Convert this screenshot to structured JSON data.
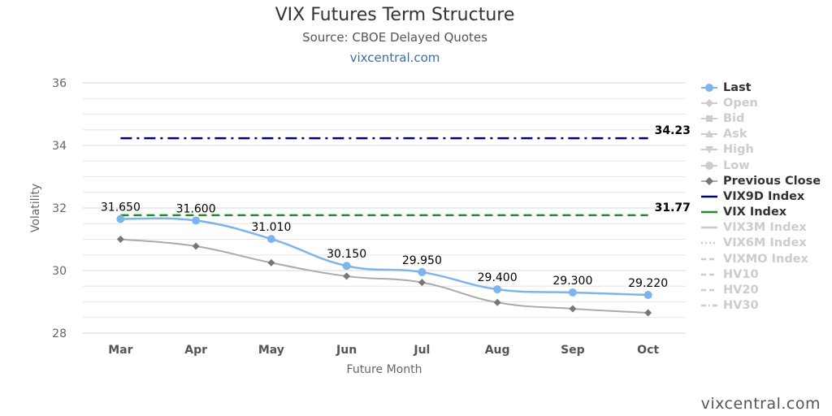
{
  "header": {
    "title": "VIX Futures Term Structure",
    "subtitle": "Source: CBOE Delayed Quotes",
    "link": "vixcentral.com"
  },
  "footer": {
    "credit": "vixcentral.com"
  },
  "colors": {
    "last": "#7cb5ec",
    "previous_close": "#aaaaaa",
    "vix9d": "#000080",
    "vix": "#228b22",
    "inactive": "#cccccc",
    "grid": "#e6e6e6"
  },
  "chart_data": {
    "type": "line",
    "title": "VIX Futures Term Structure",
    "subtitle": "Source: CBOE Delayed Quotes",
    "xlabel": "Future Month",
    "ylabel": "Volatility",
    "categories": [
      "Mar",
      "Apr",
      "May",
      "Jun",
      "Jul",
      "Aug",
      "Sep",
      "Oct"
    ],
    "ylim": [
      28,
      36
    ],
    "yticks": [
      "28",
      "30",
      "32",
      "34",
      "36"
    ],
    "grid": true,
    "legend_position": "right",
    "series": [
      {
        "name": "Last",
        "values": [
          31.65,
          31.6,
          31.01,
          30.15,
          29.95,
          29.4,
          29.3,
          29.22
        ],
        "labels": [
          "31.650",
          "31.600",
          "31.010",
          "30.150",
          "29.950",
          "29.400",
          "29.300",
          "29.220"
        ]
      },
      {
        "name": "Previous Close",
        "values": [
          31.0,
          30.78,
          30.25,
          29.82,
          29.62,
          28.98,
          28.78,
          28.65
        ]
      },
      {
        "name": "VIX9D Index",
        "value": 34.23,
        "label": "34.23"
      },
      {
        "name": "VIX Index",
        "value": 31.77,
        "label": "31.77"
      }
    ]
  },
  "legend": {
    "items": [
      {
        "name": "Last",
        "label": "Last",
        "active": true,
        "symbol": "circle",
        "color": "#7cb5ec"
      },
      {
        "name": "Open",
        "label": "Open",
        "active": false,
        "symbol": "diamond"
      },
      {
        "name": "Bid",
        "label": "Bid",
        "active": false,
        "symbol": "square"
      },
      {
        "name": "Ask",
        "label": "Ask",
        "active": false,
        "symbol": "triangle"
      },
      {
        "name": "High",
        "label": "High",
        "active": false,
        "symbol": "triangle-down"
      },
      {
        "name": "Low",
        "label": "Low",
        "active": false,
        "symbol": "circle"
      },
      {
        "name": "Previous Close",
        "label": "Previous Close",
        "active": true,
        "symbol": "diamond",
        "color": "#777777"
      },
      {
        "name": "VIX9D Index",
        "label": "VIX9D Index",
        "active": true,
        "symbol": "line",
        "color": "#000080"
      },
      {
        "name": "VIX Index",
        "label": "VIX Index",
        "active": true,
        "symbol": "line",
        "color": "#228b22"
      },
      {
        "name": "VIX3M Index",
        "label": "VIX3M Index",
        "active": false,
        "symbol": "line"
      },
      {
        "name": "VIX6M Index",
        "label": "VIX6M Index",
        "active": false,
        "symbol": "dotted"
      },
      {
        "name": "VIXMO Index",
        "label": "VIXMO Index",
        "active": false,
        "symbol": "dashed"
      },
      {
        "name": "HV10",
        "label": "HV10",
        "active": false,
        "symbol": "dashed"
      },
      {
        "name": "HV20",
        "label": "HV20",
        "active": false,
        "symbol": "dashed"
      },
      {
        "name": "HV30",
        "label": "HV30",
        "active": false,
        "symbol": "dashdot"
      }
    ]
  }
}
